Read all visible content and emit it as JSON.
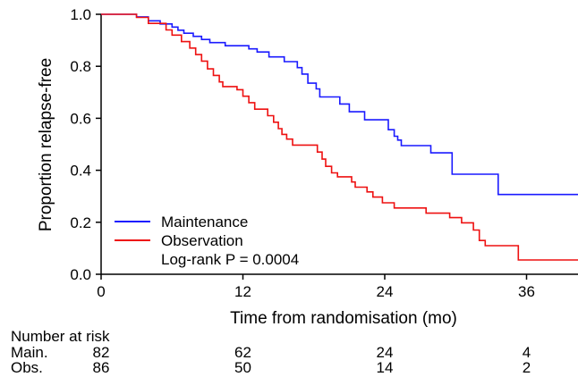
{
  "chart_data": {
    "type": "line",
    "step": true,
    "xlabel": "Time from randomisation (mo)",
    "ylabel": "Proportion relapse-free",
    "xlim": [
      0,
      44
    ],
    "ylim": [
      0,
      1.0
    ],
    "x_ticks": [
      0,
      12,
      24,
      36
    ],
    "y_ticks": [
      "0.0",
      "0.2",
      "0.4",
      "0.6",
      "0.8",
      "1.0"
    ],
    "legend_position": "bottom-left",
    "annotation": "Log-rank P = 0.0004",
    "series": [
      {
        "name": "Maintenance",
        "color": "#1a1aff",
        "end_x": 44,
        "points": [
          [
            0,
            1.0
          ],
          [
            3,
            0.99
          ],
          [
            4,
            0.975
          ],
          [
            5,
            0.963
          ],
          [
            6,
            0.951
          ],
          [
            6.5,
            0.939
          ],
          [
            7,
            0.927
          ],
          [
            7.8,
            0.915
          ],
          [
            8.5,
            0.903
          ],
          [
            9.2,
            0.891
          ],
          [
            10.5,
            0.879
          ],
          [
            11.7,
            0.879
          ],
          [
            12.5,
            0.867
          ],
          [
            13.2,
            0.855
          ],
          [
            14.2,
            0.836
          ],
          [
            15.5,
            0.818
          ],
          [
            16.6,
            0.795
          ],
          [
            17,
            0.77
          ],
          [
            17.5,
            0.735
          ],
          [
            18.2,
            0.713
          ],
          [
            18.5,
            0.682
          ],
          [
            20.2,
            0.655
          ],
          [
            21,
            0.625
          ],
          [
            22.3,
            0.594
          ],
          [
            23.5,
            0.594
          ],
          [
            24.3,
            0.556
          ],
          [
            24.8,
            0.531
          ],
          [
            25.1,
            0.516
          ],
          [
            25.4,
            0.495
          ],
          [
            27.5,
            0.495
          ],
          [
            27.9,
            0.467
          ],
          [
            29.6,
            0.467
          ],
          [
            29.7,
            0.385
          ],
          [
            31.4,
            0.385
          ],
          [
            33.4,
            0.385
          ],
          [
            33.6,
            0.307
          ]
        ]
      },
      {
        "name": "Observation",
        "color": "#ee1111",
        "end_x": 41,
        "points": [
          [
            0,
            1.0
          ],
          [
            3,
            0.988
          ],
          [
            4,
            0.965
          ],
          [
            5.5,
            0.94
          ],
          [
            6,
            0.92
          ],
          [
            6.8,
            0.895
          ],
          [
            7.5,
            0.87
          ],
          [
            8,
            0.845
          ],
          [
            8.5,
            0.82
          ],
          [
            9,
            0.79
          ],
          [
            9.5,
            0.765
          ],
          [
            10,
            0.74
          ],
          [
            10.3,
            0.722
          ],
          [
            11.5,
            0.71
          ],
          [
            12,
            0.685
          ],
          [
            12.5,
            0.66
          ],
          [
            13,
            0.635
          ],
          [
            14.1,
            0.61
          ],
          [
            14.6,
            0.585
          ],
          [
            15,
            0.56
          ],
          [
            15.3,
            0.538
          ],
          [
            15.7,
            0.52
          ],
          [
            16.2,
            0.497
          ],
          [
            18,
            0.497
          ],
          [
            18.3,
            0.47
          ],
          [
            18.7,
            0.443
          ],
          [
            19,
            0.415
          ],
          [
            19.5,
            0.39
          ],
          [
            20,
            0.375
          ],
          [
            21.2,
            0.355
          ],
          [
            21.5,
            0.335
          ],
          [
            22.5,
            0.317
          ],
          [
            23,
            0.297
          ],
          [
            23.8,
            0.275
          ],
          [
            24.8,
            0.255
          ],
          [
            27.5,
            0.235
          ],
          [
            29.5,
            0.218
          ],
          [
            30.5,
            0.198
          ],
          [
            31.5,
            0.17
          ],
          [
            32,
            0.13
          ],
          [
            32.5,
            0.11
          ],
          [
            35,
            0.11
          ],
          [
            35.3,
            0.055
          ]
        ]
      }
    ],
    "risk_table": {
      "title": "Number at risk",
      "times": [
        0,
        12,
        24,
        36
      ],
      "rows": [
        {
          "label": "Main.",
          "values": [
            "82",
            "62",
            "24",
            "4"
          ]
        },
        {
          "label": "Obs.",
          "values": [
            "86",
            "50",
            "14",
            "2"
          ]
        }
      ]
    }
  }
}
